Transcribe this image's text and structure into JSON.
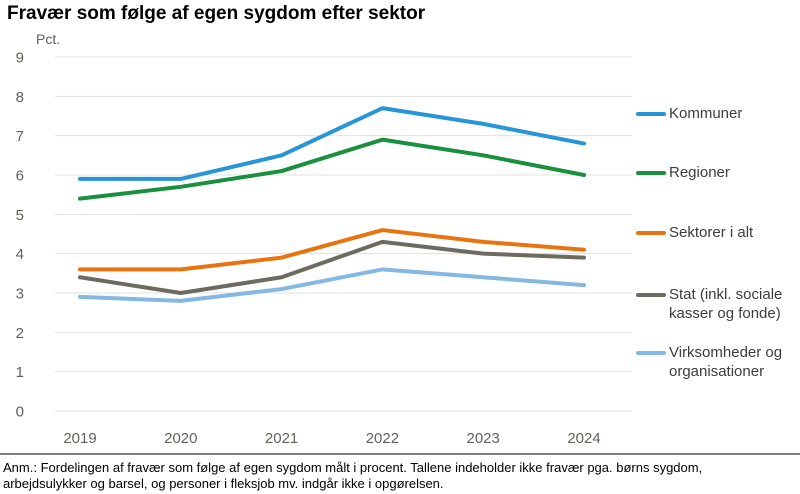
{
  "title": "Fravær som følge af egen sygdom efter sektor",
  "chart_data": {
    "type": "line",
    "unit_label": "Pct.",
    "x": [
      "2019",
      "2020",
      "2021",
      "2022",
      "2023",
      "2024"
    ],
    "series": [
      {
        "name": "Kommuner",
        "color": "#2795d6",
        "values": [
          5.9,
          5.9,
          6.5,
          7.7,
          7.3,
          6.8
        ]
      },
      {
        "name": "Regioner",
        "color": "#18903e",
        "values": [
          5.4,
          5.7,
          6.1,
          6.9,
          6.5,
          6.0
        ]
      },
      {
        "name": "Sektorer i alt",
        "color": "#e9730f",
        "values": [
          3.6,
          3.6,
          3.9,
          4.6,
          4.3,
          4.1
        ]
      },
      {
        "name": "Stat (inkl. sociale kasser og fonde)",
        "color": "#6d6b60",
        "values": [
          3.4,
          3.0,
          3.4,
          4.3,
          4.0,
          3.9
        ]
      },
      {
        "name": "Virksomheder og organisationer",
        "color": "#84b8e4",
        "values": [
          2.9,
          2.8,
          3.1,
          3.6,
          3.4,
          3.2
        ]
      }
    ],
    "ylim": [
      0,
      9
    ],
    "y_ticks": [
      9,
      8,
      7,
      6,
      5,
      4,
      3,
      2,
      1,
      0
    ],
    "grid": true,
    "legend_position": "right"
  },
  "footnote": {
    "lines": [
      "Anm.: Fordelingen af fravær som følge af egen sygdom målt i procent. Tallene indeholder ikke fravær pga. børns sygdom,",
      "arbejdsulykker og barsel, og personer i fleksjob mv. indgår ikke i opgørelsen."
    ]
  },
  "colors": {
    "grid_line": "#e0e0dd",
    "axis_text": "#63615a",
    "legend_text": "#3c3c3c",
    "separator": "#7c7c7c"
  }
}
